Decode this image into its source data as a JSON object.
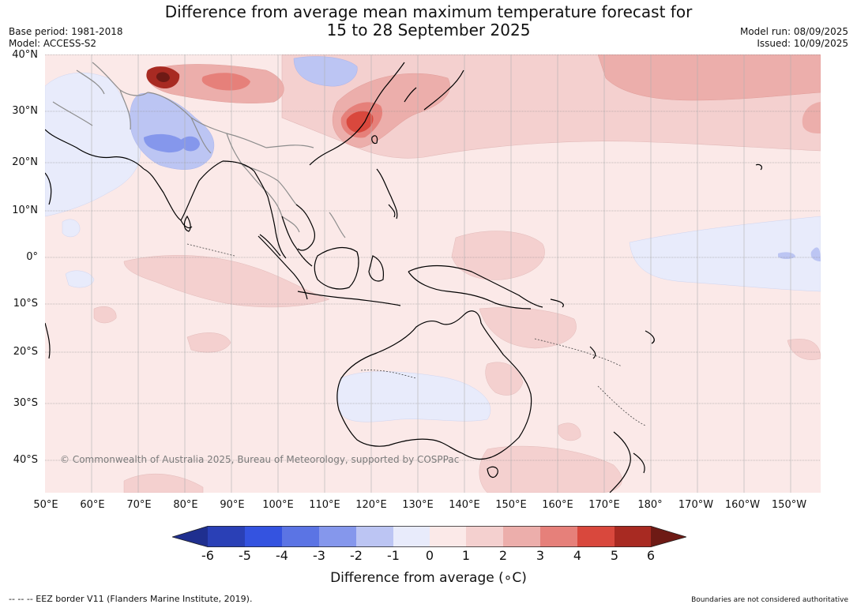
{
  "title": {
    "line1": "Difference from average mean maximum temperature forecast for",
    "line2": "15 to 28 September 2025"
  },
  "meta_left": {
    "base_period": "Base period: 1981-2018",
    "model": "Model: ACCESS-S2"
  },
  "meta_right": {
    "model_run": "Model run: 08/09/2025",
    "issued": "Issued: 10/09/2025"
  },
  "map": {
    "lat_labels": [
      "40°N",
      "30°N",
      "20°N",
      "10°N",
      "0°",
      "10°S",
      "20°S",
      "30°S",
      "40°S"
    ],
    "lon_labels": [
      "50°E",
      "60°E",
      "70°E",
      "80°E",
      "90°E",
      "100°E",
      "110°E",
      "120°E",
      "130°E",
      "140°E",
      "150°E",
      "160°E",
      "170°E",
      "180°",
      "170°W",
      "160°W",
      "150°W"
    ],
    "copyright": "© Commonwealth of Australia 2025, Bureau of Meteorology, supported by COSPPac"
  },
  "colorbar": {
    "ticks": [
      "-6",
      "-5",
      "-4",
      "-3",
      "-2",
      "-1",
      "0",
      "1",
      "2",
      "3",
      "4",
      "5",
      "6"
    ],
    "colors": [
      "#1f2f8f",
      "#2a40b6",
      "#3453e0",
      "#5b74e4",
      "#8597ec",
      "#bcc5f3",
      "#e8ebfb",
      "#fbe9e8",
      "#f4d0cf",
      "#ecaeab",
      "#e6807a",
      "#d9483d",
      "#a82a22",
      "#6e1a15"
    ],
    "label": "Difference from average (∘C)"
  },
  "footer": {
    "left": "--  --  -- EEZ border V11 (Flanders Marine Institute, 2019).",
    "right": "Boundaries are not considered authoritative"
  }
}
